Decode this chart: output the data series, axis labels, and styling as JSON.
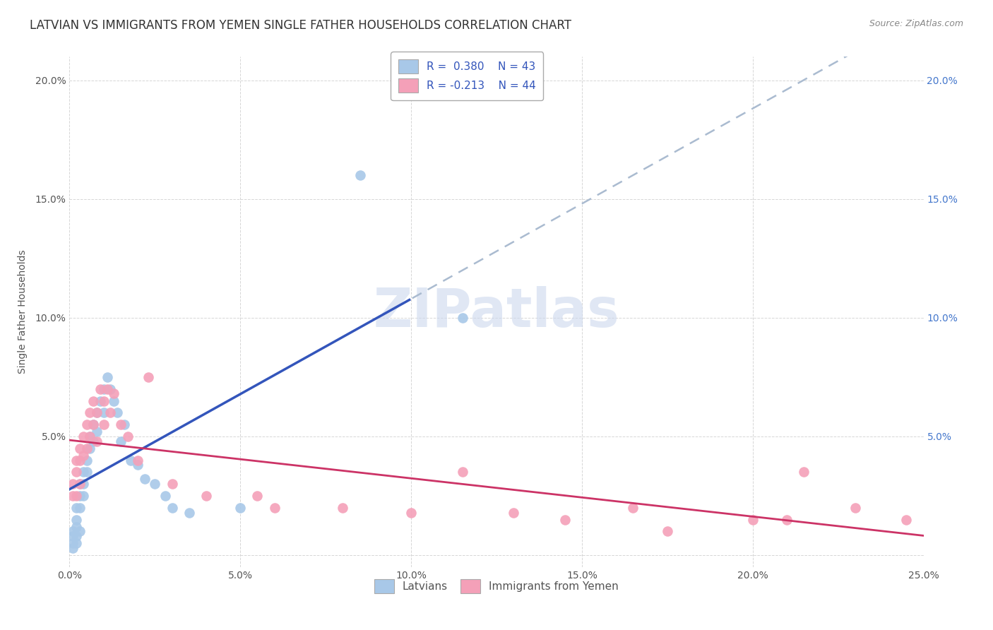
{
  "title": "LATVIAN VS IMMIGRANTS FROM YEMEN SINGLE FATHER HOUSEHOLDS CORRELATION CHART",
  "source": "Source: ZipAtlas.com",
  "ylabel": "Single Father Households",
  "xlim": [
    0.0,
    0.25
  ],
  "ylim": [
    -0.005,
    0.21
  ],
  "xticks": [
    0.0,
    0.05,
    0.1,
    0.15,
    0.2,
    0.25
  ],
  "yticks": [
    0.0,
    0.05,
    0.1,
    0.15,
    0.2
  ],
  "ytick_labels_left": [
    "",
    "5.0%",
    "10.0%",
    "15.0%",
    "20.0%"
  ],
  "ytick_labels_right": [
    "",
    "5.0%",
    "10.0%",
    "15.0%",
    "20.0%"
  ],
  "xtick_labels": [
    "0.0%",
    "5.0%",
    "10.0%",
    "15.0%",
    "20.0%",
    "25.0%"
  ],
  "series1_color": "#a8c8e8",
  "series2_color": "#f4a0b8",
  "line1_color": "#3355bb",
  "line2_color": "#cc3366",
  "dash_color": "#aabbd0",
  "background_color": "#ffffff",
  "grid_color": "#cccccc",
  "watermark": "ZIPatlas",
  "title_fontsize": 12,
  "axis_fontsize": 10,
  "latvians_x": [
    0.001,
    0.001,
    0.001,
    0.001,
    0.002,
    0.002,
    0.002,
    0.002,
    0.002,
    0.003,
    0.003,
    0.003,
    0.003,
    0.004,
    0.004,
    0.004,
    0.005,
    0.005,
    0.006,
    0.006,
    0.007,
    0.007,
    0.008,
    0.008,
    0.009,
    0.01,
    0.01,
    0.011,
    0.012,
    0.013,
    0.014,
    0.015,
    0.016,
    0.018,
    0.02,
    0.022,
    0.025,
    0.028,
    0.03,
    0.035,
    0.05,
    0.085,
    0.115
  ],
  "latvians_y": [
    0.01,
    0.008,
    0.005,
    0.003,
    0.02,
    0.015,
    0.012,
    0.008,
    0.005,
    0.03,
    0.025,
    0.02,
    0.01,
    0.035,
    0.03,
    0.025,
    0.04,
    0.035,
    0.05,
    0.045,
    0.055,
    0.048,
    0.06,
    0.052,
    0.065,
    0.07,
    0.06,
    0.075,
    0.07,
    0.065,
    0.06,
    0.048,
    0.055,
    0.04,
    0.038,
    0.032,
    0.03,
    0.025,
    0.02,
    0.018,
    0.02,
    0.16,
    0.1
  ],
  "yemen_x": [
    0.001,
    0.001,
    0.002,
    0.002,
    0.002,
    0.003,
    0.003,
    0.003,
    0.004,
    0.004,
    0.005,
    0.005,
    0.006,
    0.006,
    0.007,
    0.007,
    0.008,
    0.008,
    0.009,
    0.01,
    0.01,
    0.011,
    0.012,
    0.013,
    0.015,
    0.017,
    0.02,
    0.023,
    0.03,
    0.04,
    0.055,
    0.06,
    0.08,
    0.1,
    0.115,
    0.13,
    0.145,
    0.165,
    0.175,
    0.2,
    0.21,
    0.215,
    0.23,
    0.245
  ],
  "yemen_y": [
    0.03,
    0.025,
    0.04,
    0.035,
    0.025,
    0.045,
    0.04,
    0.03,
    0.05,
    0.042,
    0.055,
    0.045,
    0.06,
    0.05,
    0.065,
    0.055,
    0.06,
    0.048,
    0.07,
    0.065,
    0.055,
    0.07,
    0.06,
    0.068,
    0.055,
    0.05,
    0.04,
    0.075,
    0.03,
    0.025,
    0.025,
    0.02,
    0.02,
    0.018,
    0.035,
    0.018,
    0.015,
    0.02,
    0.01,
    0.015,
    0.015,
    0.035,
    0.02,
    0.015
  ],
  "solid_line_x_end": 0.1,
  "dash_line_x_start": 0.1
}
